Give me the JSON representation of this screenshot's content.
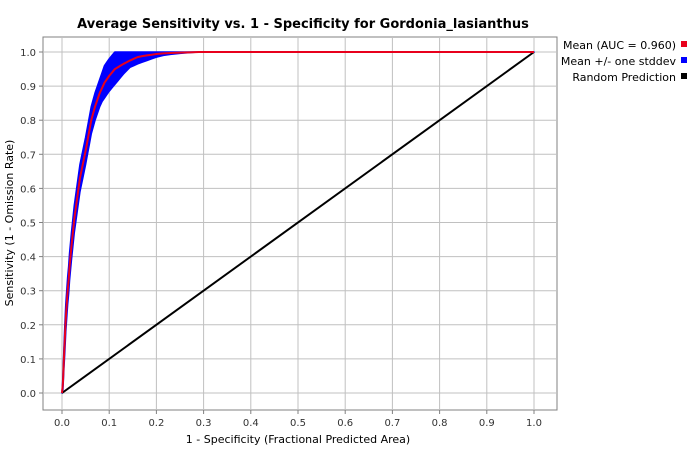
{
  "chart_data": {
    "type": "line",
    "title": "Average Sensitivity vs. 1 - Specificity for Gordonia_lasianthus",
    "xlabel": "1 - Specificity (Fractional Predicted Area)",
    "ylabel": "Sensitivity (1 - Omission Rate)",
    "xlim": [
      0,
      1
    ],
    "ylim": [
      0,
      1
    ],
    "xticks": [
      "0.0",
      "0.1",
      "0.2",
      "0.3",
      "0.4",
      "0.5",
      "0.6",
      "0.7",
      "0.8",
      "0.9",
      "1.0"
    ],
    "yticks": [
      "0.0",
      "0.1",
      "0.2",
      "0.3",
      "0.4",
      "0.5",
      "0.6",
      "0.7",
      "0.8",
      "0.9",
      "1.0"
    ],
    "grid": true,
    "legend_position": "right",
    "series": [
      {
        "name": "Mean (AUC = 0.960)",
        "color": "#e8001c",
        "x": [
          0,
          0.002,
          0.004,
          0.006,
          0.008,
          0.01,
          0.012,
          0.014,
          0.016,
          0.018,
          0.02,
          0.023,
          0.026,
          0.029,
          0.032,
          0.035,
          0.038,
          0.041,
          0.044,
          0.047,
          0.05,
          0.054,
          0.058,
          0.062,
          0.066,
          0.07,
          0.075,
          0.08,
          0.085,
          0.09,
          0.095,
          0.1,
          0.106,
          0.112,
          0.118,
          0.124,
          0.13,
          0.137,
          0.144,
          0.152,
          0.16,
          0.17,
          0.18,
          0.19,
          0.2,
          0.215,
          0.23,
          0.25,
          0.27,
          0.29,
          0.3,
          1.0
        ],
        "y": [
          0,
          0.03,
          0.1,
          0.16,
          0.22,
          0.26,
          0.3,
          0.33,
          0.37,
          0.4,
          0.43,
          0.47,
          0.51,
          0.54,
          0.57,
          0.6,
          0.63,
          0.65,
          0.67,
          0.69,
          0.71,
          0.74,
          0.77,
          0.8,
          0.82,
          0.84,
          0.86,
          0.88,
          0.895,
          0.91,
          0.92,
          0.93,
          0.94,
          0.95,
          0.955,
          0.96,
          0.965,
          0.97,
          0.975,
          0.98,
          0.985,
          0.988,
          0.99,
          0.992,
          0.994,
          0.996,
          0.997,
          0.998,
          0.999,
          1.0,
          1.0,
          1.0
        ]
      },
      {
        "name": "Mean +/- one stddev",
        "color": "#0000ff",
        "x": [
          0,
          0.002,
          0.004,
          0.006,
          0.008,
          0.01,
          0.012,
          0.014,
          0.016,
          0.018,
          0.02,
          0.023,
          0.026,
          0.029,
          0.032,
          0.035,
          0.038,
          0.041,
          0.044,
          0.047,
          0.05,
          0.054,
          0.058,
          0.062,
          0.066,
          0.07,
          0.075,
          0.08,
          0.085,
          0.09,
          0.095,
          0.1,
          0.106,
          0.112,
          0.118,
          0.124,
          0.13,
          0.137,
          0.144,
          0.152,
          0.16,
          0.17,
          0.18,
          0.19,
          0.2,
          0.215,
          0.23,
          0.25,
          0.27,
          0.29,
          0.3,
          1.0
        ],
        "y_upper": [
          0,
          0.05,
          0.13,
          0.2,
          0.26,
          0.3,
          0.34,
          0.37,
          0.41,
          0.44,
          0.47,
          0.51,
          0.55,
          0.58,
          0.61,
          0.64,
          0.67,
          0.69,
          0.71,
          0.73,
          0.75,
          0.78,
          0.81,
          0.84,
          0.86,
          0.88,
          0.9,
          0.92,
          0.94,
          0.96,
          0.97,
          0.98,
          0.99,
          1.0,
          1.0,
          1.0,
          1.0,
          1.0,
          1.0,
          1.0,
          1.0,
          1.0,
          1.0,
          1.0,
          1.0,
          1.0,
          1.0,
          1.0,
          1.0,
          1.0,
          1.0,
          1.0
        ],
        "y_lower": [
          0,
          0.01,
          0.07,
          0.12,
          0.18,
          0.22,
          0.26,
          0.29,
          0.33,
          0.36,
          0.39,
          0.43,
          0.47,
          0.5,
          0.53,
          0.56,
          0.59,
          0.61,
          0.63,
          0.65,
          0.67,
          0.7,
          0.73,
          0.76,
          0.78,
          0.8,
          0.82,
          0.84,
          0.855,
          0.865,
          0.875,
          0.885,
          0.895,
          0.905,
          0.915,
          0.925,
          0.935,
          0.945,
          0.955,
          0.96,
          0.965,
          0.97,
          0.975,
          0.98,
          0.985,
          0.99,
          0.993,
          0.996,
          0.998,
          1.0,
          1.0,
          1.0
        ]
      },
      {
        "name": "Random Prediction",
        "color": "#000000",
        "x": [
          0,
          1
        ],
        "y": [
          0,
          1
        ]
      }
    ]
  }
}
